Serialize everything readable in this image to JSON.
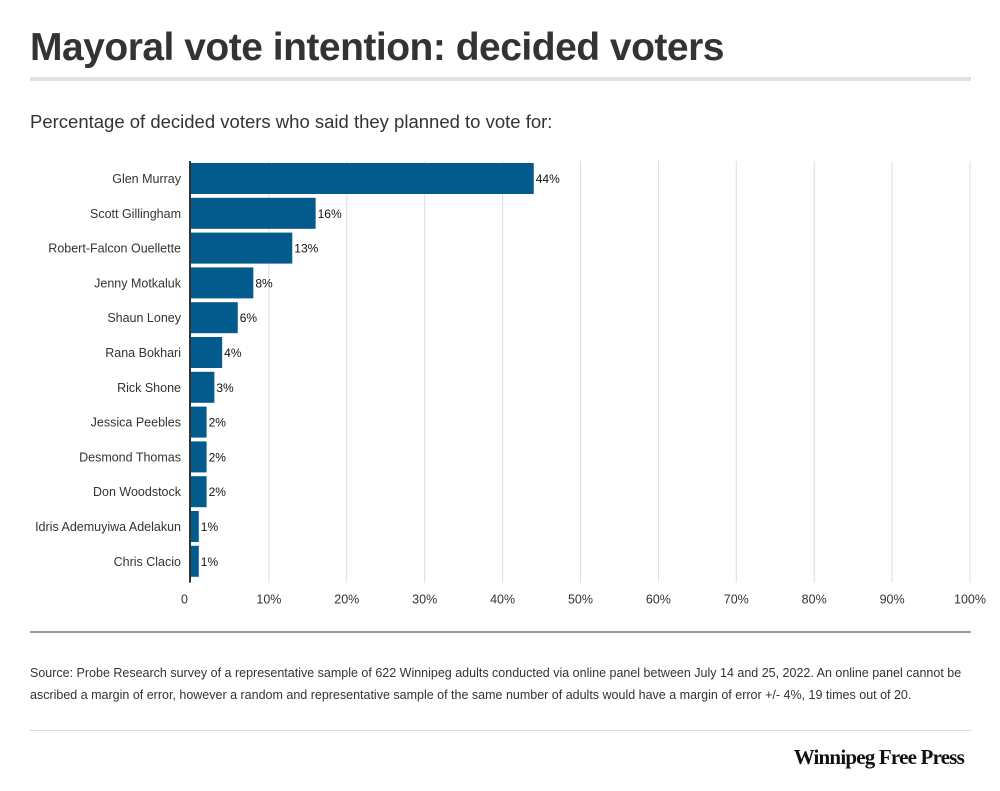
{
  "header": {
    "title": "Mayoral vote intention: decided voters",
    "subtitle": "Percentage of decided voters who said they planned to vote for:"
  },
  "chart_data": {
    "type": "bar",
    "orientation": "horizontal",
    "categories": [
      "Glen Murray",
      "Scott Gillingham",
      "Robert-Falcon Ouellette",
      "Jenny Motkaluk",
      "Shaun Loney",
      "Rana Bokhari",
      "Rick Shone",
      "Jessica Peebles",
      "Desmond Thomas",
      "Don Woodstock",
      "Idris Ademuyiwa Adelakun",
      "Chris Clacio"
    ],
    "values": [
      44,
      16,
      13,
      8,
      6,
      4,
      3,
      2,
      2,
      2,
      1,
      1
    ],
    "value_labels": [
      "44%",
      "16%",
      "13%",
      "8%",
      "6%",
      "4%",
      "3%",
      "2%",
      "2%",
      "2%",
      "1%",
      "1%"
    ],
    "xlim": [
      0,
      100
    ],
    "x_ticks": [
      0,
      10,
      20,
      30,
      40,
      50,
      60,
      70,
      80,
      90,
      100
    ],
    "x_tick_labels": [
      "0",
      "10%",
      "20%",
      "30%",
      "40%",
      "50%",
      "60%",
      "70%",
      "80%",
      "90%",
      "100%"
    ],
    "grid": true,
    "bar_color": "#035a8c"
  },
  "footer": {
    "source": "Source: Probe Research survey of a representative sample of 622 Winnipeg adults conducted via online panel between July 14 and 25, 2022.  An online panel cannot be ascribed a margin of error, however a random and representative sample of the same number of adults would have a margin of error +/- 4%, 19 times out of 20.",
    "brand": "Winnipeg Free Press"
  }
}
